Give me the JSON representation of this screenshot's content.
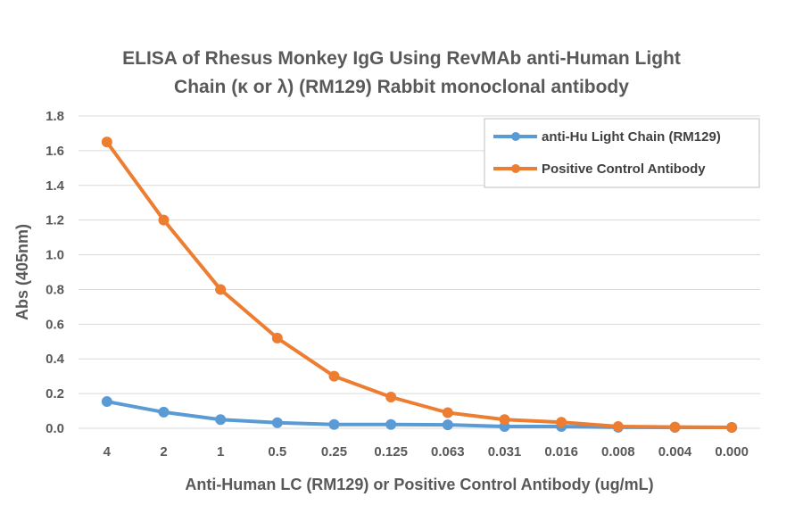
{
  "chart_data": {
    "type": "line",
    "title_lines": [
      "ELISA of Rhesus Monkey IgG Using RevMAb anti-Human Light",
      "Chain (κ or λ) (RM129) Rabbit monoclonal antibody"
    ],
    "xlabel": "Anti-Human LC (RM129) or Positive Control Antibody (ug/mL)",
    "ylabel": "Abs (405nm)",
    "categories": [
      "4",
      "2",
      "1",
      "0.5",
      "0.25",
      "0.125",
      "0.063",
      "0.031",
      "0.016",
      "0.008",
      "0.004",
      "0.000"
    ],
    "ylim": [
      0,
      1.8
    ],
    "yticks": [
      "0.0",
      "0.2",
      "0.4",
      "0.6",
      "0.8",
      "1.0",
      "1.2",
      "1.4",
      "1.6",
      "1.8"
    ],
    "grid": true,
    "legend_position": "top-right",
    "series": [
      {
        "name": "anti-Hu Light Chain (RM129)",
        "color": "#5b9bd5",
        "values": [
          0.154,
          0.093,
          0.05,
          0.032,
          0.022,
          0.022,
          0.02,
          0.01,
          0.01,
          0.006,
          0.005,
          0.005
        ]
      },
      {
        "name": "Positive Control Antibody",
        "color": "#ed7d31",
        "values": [
          1.65,
          1.2,
          0.8,
          0.52,
          0.3,
          0.18,
          0.09,
          0.05,
          0.035,
          0.01,
          0.007,
          0.005
        ]
      }
    ]
  }
}
